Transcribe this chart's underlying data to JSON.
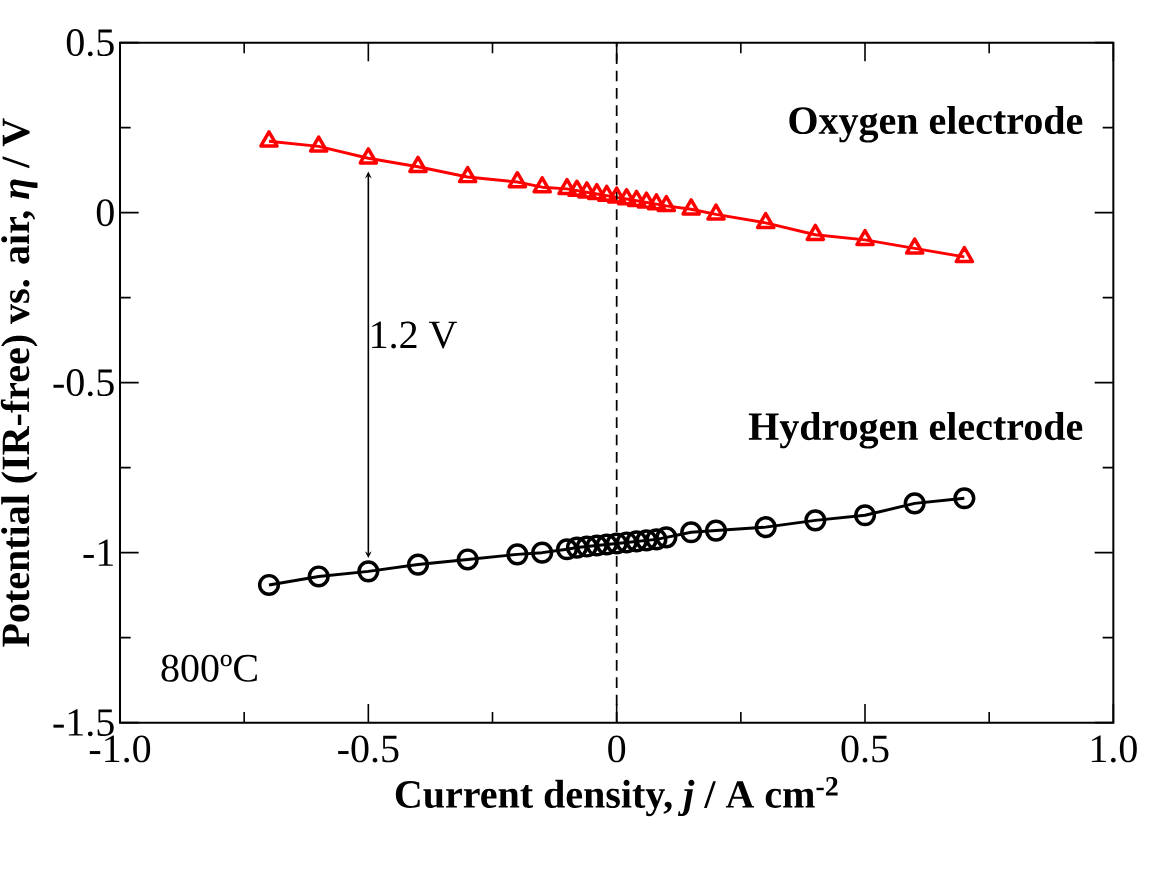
{
  "chart_data": {
    "type": "line",
    "xlabel": "Current density, *j* / A cm$^{-2}$",
    "ylabel": "Potential (IR-free) vs. air, *η* / V",
    "xlim": [
      -1.0,
      1.0
    ],
    "ylim": [
      -1.5,
      0.5
    ],
    "xticks": [
      {
        "value": -1.0,
        "label": "-1.0"
      },
      {
        "value": -0.5,
        "label": "-0.5"
      },
      0,
      {
        "value": 0.5,
        "label": "0.5"
      },
      {
        "value": 1.0,
        "label": "1.0"
      }
    ],
    "yticks": [
      0.5,
      0,
      -0.5,
      -1,
      -1.5
    ],
    "x": [
      -0.7,
      -0.6,
      -0.5,
      -0.4,
      -0.3,
      -0.2,
      -0.15,
      -0.1,
      -0.08,
      -0.06,
      -0.04,
      -0.02,
      0,
      0.02,
      0.04,
      0.06,
      0.08,
      0.1,
      0.15,
      0.2,
      0.3,
      0.4,
      0.5,
      0.6,
      0.7
    ],
    "series": [
      {
        "color": "#ff0000",
        "marker": "triangle",
        "values": [
          0.21,
          0.195,
          0.16,
          0.135,
          0.105,
          0.09,
          0.075,
          0.07,
          0.065,
          0.06,
          0.055,
          0.05,
          0.045,
          0.04,
          0.035,
          0.03,
          0.025,
          0.02,
          0.01,
          -0.005,
          -0.03,
          -0.065,
          -0.08,
          -0.105,
          -0.13
        ]
      },
      {
        "color": "#000000",
        "marker": "circle",
        "values": [
          -1.095,
          -1.07,
          -1.055,
          -1.035,
          -1.02,
          -1.005,
          -1.0,
          -0.99,
          -0.985,
          -0.982,
          -0.979,
          -0.976,
          -0.973,
          -0.97,
          -0.967,
          -0.964,
          -0.961,
          -0.955,
          -0.94,
          -0.935,
          -0.925,
          -0.905,
          -0.89,
          -0.855,
          -0.84
        ]
      }
    ],
    "ref_lines": [
      {
        "axis": "x",
        "value": 0,
        "line_style": "dashed",
        "color": "#000000"
      }
    ],
    "annotations": [
      "Oxygen electrode",
      "Hydrogen electrode",
      "1.2 V",
      "800ºC"
    ],
    "grid": false,
    "line_style": "solid"
  }
}
